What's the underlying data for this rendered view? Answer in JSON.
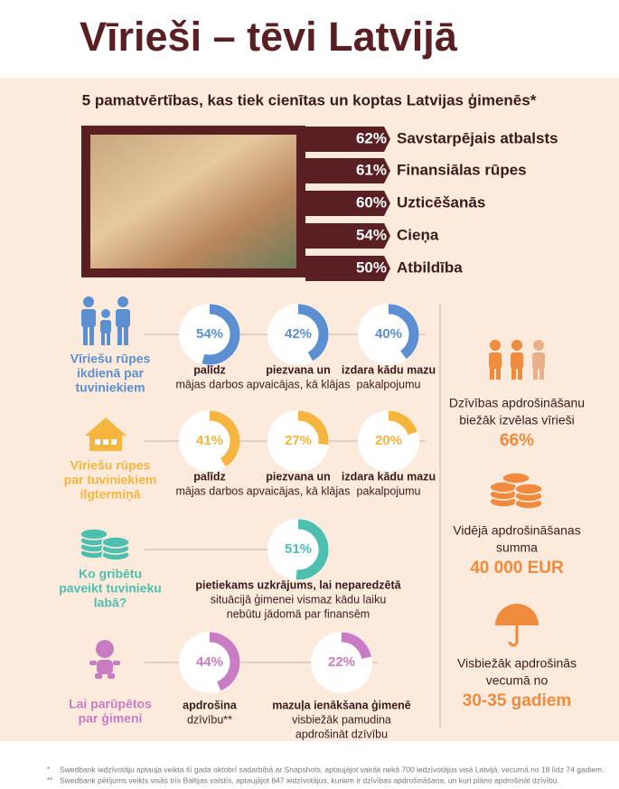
{
  "title": "Vīrieši – tēvi Latvijā",
  "values_section": {
    "title": "5 pamatvērtības, kas tiek cienītas un koptas Latvijas ģimenēs*",
    "items": [
      {
        "value": 62,
        "label": "62%",
        "name": "Savstarpējais atbalsts"
      },
      {
        "value": 61,
        "label": "61%",
        "name": "Finansiālas rūpes"
      },
      {
        "value": 60,
        "label": "60%",
        "name": "Uzticēšanās"
      },
      {
        "value": 54,
        "label": "54%",
        "name": "Cieņa"
      },
      {
        "value": 50,
        "label": "50%",
        "name": "Atbildība"
      }
    ]
  },
  "groups": [
    {
      "title_lines": [
        "Vīriešu rūpes",
        "ikdienā par",
        "tuviniekiem"
      ],
      "color": "#5b8fd1",
      "donuts": [
        {
          "value": 54,
          "label": "54%",
          "caption": [
            "palīdz",
            "mājas darbos"
          ]
        },
        {
          "value": 42,
          "label": "42%",
          "caption": [
            "piezvana un",
            "apvaicājas, kā klājas"
          ]
        },
        {
          "value": 40,
          "label": "40%",
          "caption": [
            "izdara kādu mazu",
            "pakalpojumu"
          ]
        }
      ]
    },
    {
      "title_lines": [
        "Vīriešu rūpes",
        "par tuviniekiem",
        "ilgtermiņā"
      ],
      "color": "#f5b53f",
      "donuts": [
        {
          "value": 41,
          "label": "41%",
          "caption": [
            "palīdz",
            "mājas darbos"
          ]
        },
        {
          "value": 27,
          "label": "27%",
          "caption": [
            "piezvana un",
            "apvaicājas, kā klājas"
          ]
        },
        {
          "value": 20,
          "label": "20%",
          "caption": [
            "izdara kādu mazu",
            "pakalpojumu"
          ]
        }
      ]
    },
    {
      "title_lines": [
        "Ko gribētu",
        "paveikt tuvinieku",
        "labā?"
      ],
      "color": "#4dbfae",
      "donuts": [
        {
          "value": 51,
          "label": "51%",
          "caption": [
            "pietiekams uzkrājums, lai neparedzētā",
            "situācijā ģimenei vismaz kādu laiku",
            "nebūtu jādomā par finansēm"
          ]
        }
      ]
    },
    {
      "title_lines": [
        "Lai parūpētos",
        "par ģimeni"
      ],
      "color": "#c97cc2",
      "donuts": [
        {
          "value": 44,
          "label": "44%",
          "caption": [
            "apdrošina",
            "dzīvību**"
          ]
        },
        {
          "value": 22,
          "label": "22%",
          "caption": [
            "mazuļa ienākšana ģimenē",
            "visbiežāk pamudina",
            "apdrošināt dzīvību"
          ]
        }
      ]
    }
  ],
  "facts": [
    {
      "lines": [
        "Dzīvības apdrošināšanu",
        "biežāk izvēlas vīrieši"
      ],
      "highlight": "66%"
    },
    {
      "lines": [
        "Vidējā apdrošināšanas",
        "summa"
      ],
      "highlight": "40 000 EUR"
    },
    {
      "lines": [
        "Visbiežāk apdrošinās",
        "vecumā no"
      ],
      "highlight": "30-35 gadiem"
    }
  ],
  "footnotes": [
    {
      "mark": "*",
      "text": "Swedbank iedzīvotāju aptauja veikta šī gada oktobrī sadarbībā ar Snapshots, aptaujājot vairāk nekā 700 iedzīvotājus visā Latvijā, vecumā no 18 līdz 74 gadiem."
    },
    {
      "mark": "**",
      "text": "Swedbank pētījums veikts visās trīs Baltijas valstīs, aptaujājot 847 iedzīvotājus, kuriem ir dzīvības apdrošināšana, un kuri plāno apdrošināt dzīvību."
    }
  ]
}
